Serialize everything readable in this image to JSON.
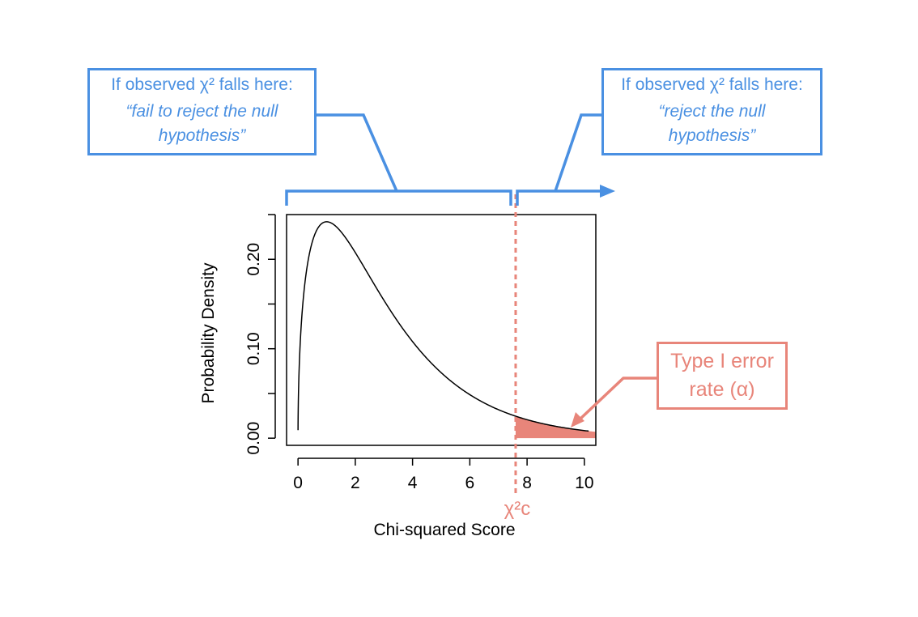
{
  "annotations": {
    "left_box": {
      "header": "If observed χ² falls here:",
      "quote_line1": "“fail to reject the null",
      "quote_line2": "hypothesis”"
    },
    "right_box": {
      "header": "If observed χ² falls here:",
      "quote_line1": "“reject the null",
      "quote_line2": "hypothesis”"
    },
    "error_box": {
      "line1": "Type I error",
      "line2": "rate (α)"
    },
    "critical_label": "χ²c"
  },
  "colors": {
    "accent_blue": "#4a90e2",
    "accent_red": "#e8857a",
    "curve": "#000000"
  },
  "chart_data": {
    "type": "area",
    "distribution": "chi-squared",
    "degrees_of_freedom": 3,
    "xlabel": "Chi-squared Score",
    "ylabel": "Probability Density",
    "xlim": [
      -0.4,
      10.4
    ],
    "ylim": [
      -0.008,
      0.25
    ],
    "x_ticks": [
      0,
      2,
      4,
      6,
      8,
      10
    ],
    "x_tick_labels": [
      "0",
      "2",
      "4",
      "6",
      "8",
      "10"
    ],
    "y_ticks": [
      0,
      0.05,
      0.1,
      0.15,
      0.2,
      0.25
    ],
    "y_tick_labels": [
      "0.00",
      "",
      "0.10",
      "",
      "0.20",
      ""
    ],
    "critical_value": 7.6,
    "shaded_region": [
      7.6,
      10.4
    ],
    "grid": false,
    "legend": "none"
  }
}
